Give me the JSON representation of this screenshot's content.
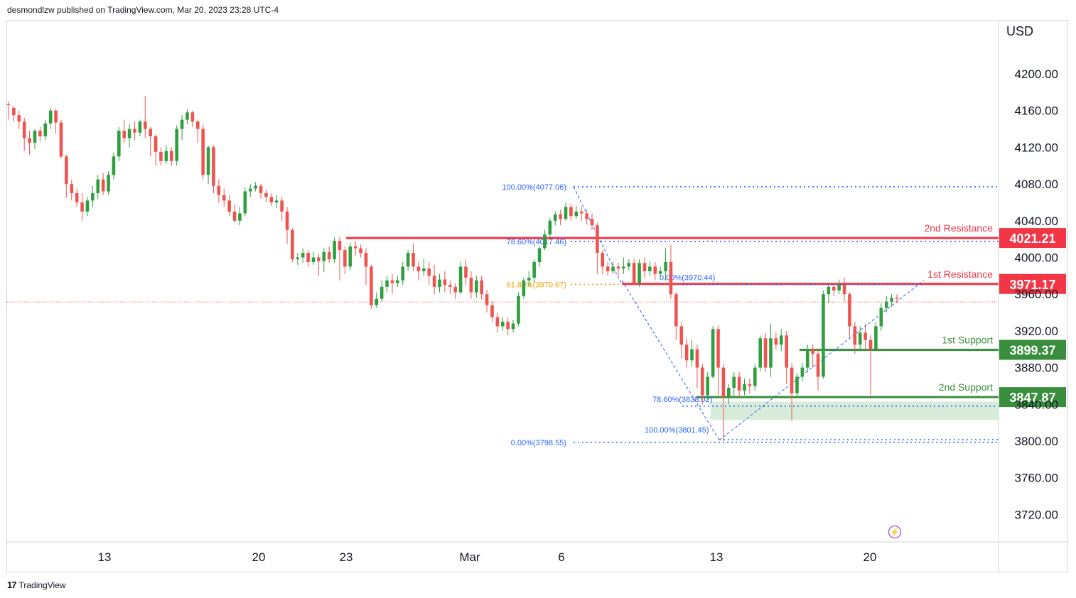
{
  "header": {
    "publisher_line": "desmondlzw published on TradingView.com, Mar 20, 2023 23:28 UTC-4"
  },
  "footer": {
    "brand": "TradingView",
    "logo_icon": "tradingview-logo-icon"
  },
  "colors": {
    "up": "#26a69a",
    "up_candle": "#2e9e3f",
    "down": "#ef5350",
    "resistance": "#f23645",
    "support": "#388e3c",
    "fib": "#2962ff",
    "fib_orange": "#f59d00"
  },
  "chart_data": {
    "type": "candlestick",
    "currency": "USD",
    "x_ticks": [
      "13",
      "20",
      "23",
      "Mar",
      "6",
      "13",
      "20"
    ],
    "y_ticks": [
      "4200.00",
      "4160.00",
      "4120.00",
      "4080.00",
      "4040.00",
      "4000.00",
      "3960.00",
      "3920.00",
      "3880.00",
      "3840.00",
      "3800.00",
      "3760.00",
      "3720.00"
    ],
    "ylim": [
      3690,
      4245
    ],
    "levels": [
      {
        "name": "2nd Resistance",
        "value": 4021.21,
        "label": "4021.21",
        "color": "#f23645"
      },
      {
        "name": "1st Resistance",
        "value": 3971.17,
        "label": "3971.17",
        "color": "#f23645"
      },
      {
        "name": "1st Support",
        "value": 3899.37,
        "label": "3899.37",
        "color": "#388e3c"
      },
      {
        "name": "2nd Support",
        "value": 3847.87,
        "label": "3847.87",
        "color": "#388e3c"
      }
    ],
    "fib_labels": [
      {
        "text": "100.00%(4077.06)",
        "value": 4077.06
      },
      {
        "text": "78.60%(4017.46)",
        "value": 4017.46
      },
      {
        "text": "61.80%(3970.67)",
        "value": 3970.67
      },
      {
        "text": "0.00%(3970.44)",
        "value": 3970.44
      },
      {
        "text": "78.60%(3838.02)",
        "value": 3838.02
      },
      {
        "text": "100.00%(3801.45)",
        "value": 3801.45
      },
      {
        "text": "0.00%(3798.55)",
        "value": 3798.55
      }
    ],
    "last_price": 3951.5,
    "candles": [
      [
        4167,
        4166,
        4170,
        4150
      ],
      [
        4163,
        4155,
        4165,
        4148
      ],
      [
        4155,
        4148,
        4160,
        4140
      ],
      [
        4148,
        4130,
        4152,
        4116
      ],
      [
        4130,
        4125,
        4138,
        4112
      ],
      [
        4125,
        4138,
        4140,
        4118
      ],
      [
        4138,
        4132,
        4142,
        4126
      ],
      [
        4132,
        4146,
        4150,
        4128
      ],
      [
        4146,
        4160,
        4163,
        4140
      ],
      [
        4160,
        4147,
        4162,
        4135
      ],
      [
        4147,
        4110,
        4150,
        4108
      ],
      [
        4110,
        4080,
        4112,
        4065
      ],
      [
        4080,
        4070,
        4085,
        4062
      ],
      [
        4070,
        4060,
        4075,
        4055
      ],
      [
        4060,
        4050,
        4070,
        4040
      ],
      [
        4050,
        4062,
        4066,
        4045
      ],
      [
        4062,
        4070,
        4078,
        4055
      ],
      [
        4070,
        4085,
        4090,
        4064
      ],
      [
        4085,
        4072,
        4092,
        4068
      ],
      [
        4072,
        4090,
        4094,
        4068
      ],
      [
        4090,
        4110,
        4114,
        4085
      ],
      [
        4110,
        4138,
        4142,
        4105
      ],
      [
        4138,
        4130,
        4150,
        4125
      ],
      [
        4130,
        4140,
        4145,
        4120
      ],
      [
        4140,
        4136,
        4148,
        4128
      ],
      [
        4136,
        4148,
        4150,
        4132
      ],
      [
        4148,
        4140,
        4176,
        4130
      ],
      [
        4140,
        4132,
        4142,
        4110
      ],
      [
        4132,
        4115,
        4134,
        4100
      ],
      [
        4115,
        4105,
        4120,
        4100
      ],
      [
        4105,
        4116,
        4122,
        4102
      ],
      [
        4116,
        4105,
        4120,
        4100
      ],
      [
        4105,
        4140,
        4144,
        4100
      ],
      [
        4140,
        4150,
        4155,
        4128
      ],
      [
        4150,
        4158,
        4162,
        4145
      ],
      [
        4158,
        4148,
        4160,
        4142
      ],
      [
        4148,
        4140,
        4150,
        4125
      ],
      [
        4140,
        4090,
        4145,
        4085
      ],
      [
        4090,
        4120,
        4122,
        4080
      ],
      [
        4120,
        4078,
        4122,
        4070
      ],
      [
        4078,
        4068,
        4085,
        4060
      ],
      [
        4068,
        4062,
        4075,
        4055
      ],
      [
        4062,
        4050,
        4068,
        4045
      ],
      [
        4050,
        4040,
        4058,
        4038
      ],
      [
        4040,
        4048,
        4055,
        4035
      ],
      [
        4048,
        4072,
        4076,
        4045
      ],
      [
        4072,
        4075,
        4080,
        4066
      ],
      [
        4075,
        4078,
        4082,
        4072
      ],
      [
        4078,
        4070,
        4080,
        4064
      ],
      [
        4070,
        4066,
        4074,
        4060
      ],
      [
        4066,
        4060,
        4070,
        4056
      ],
      [
        4060,
        4062,
        4068,
        4054
      ],
      [
        4062,
        4050,
        4066,
        4040
      ],
      [
        4050,
        4030,
        4055,
        4015
      ],
      [
        4030,
        3998,
        4032,
        3995
      ],
      [
        3998,
        4000,
        4005,
        3992
      ],
      [
        4000,
        4005,
        4010,
        3994
      ],
      [
        4005,
        3995,
        4008,
        3990
      ],
      [
        3995,
        4000,
        4006,
        3992
      ],
      [
        4000,
        3996,
        4004,
        3980
      ],
      [
        3996,
        4006,
        4010,
        3984
      ],
      [
        4006,
        3998,
        4012,
        3994
      ],
      [
        3998,
        4018,
        4022,
        3994
      ],
      [
        4018,
        4008,
        4022,
        3975
      ],
      [
        4008,
        3990,
        4012,
        3982
      ],
      [
        3990,
        4012,
        4016,
        3986
      ],
      [
        4012,
        4010,
        4018,
        4002
      ],
      [
        4010,
        4005,
        4014,
        4000
      ],
      [
        4005,
        3990,
        4010,
        3970
      ],
      [
        3990,
        3948,
        3992,
        3944
      ],
      [
        3948,
        3955,
        3962,
        3945
      ],
      [
        3955,
        3968,
        3975,
        3952
      ],
      [
        3968,
        3975,
        3980,
        3962
      ],
      [
        3975,
        3972,
        3982,
        3960
      ],
      [
        3972,
        3975,
        3980,
        3968
      ],
      [
        3975,
        3990,
        3995,
        3970
      ],
      [
        3990,
        4005,
        4008,
        3985
      ],
      [
        4005,
        3990,
        4015,
        3985
      ],
      [
        3990,
        3985,
        3995,
        3975
      ],
      [
        3985,
        3988,
        3998,
        3980
      ],
      [
        3988,
        3980,
        3995,
        3970
      ],
      [
        3980,
        3968,
        3992,
        3960
      ],
      [
        3968,
        3976,
        3982,
        3962
      ],
      [
        3976,
        3970,
        3985,
        3962
      ],
      [
        3970,
        3968,
        3975,
        3960
      ],
      [
        3968,
        3962,
        3972,
        3955
      ],
      [
        3962,
        3990,
        3995,
        3960
      ],
      [
        3990,
        3978,
        3998,
        3970
      ],
      [
        3978,
        3962,
        3985,
        3955
      ],
      [
        3962,
        3975,
        3980,
        3956
      ],
      [
        3975,
        3960,
        3980,
        3954
      ],
      [
        3960,
        3948,
        3965,
        3940
      ],
      [
        3948,
        3935,
        3952,
        3930
      ],
      [
        3935,
        3925,
        3940,
        3918
      ],
      [
        3925,
        3930,
        3935,
        3920
      ],
      [
        3930,
        3922,
        3934,
        3915
      ],
      [
        3922,
        3928,
        3932,
        3918
      ],
      [
        3928,
        3958,
        3962,
        3925
      ],
      [
        3958,
        3975,
        3978,
        3955
      ],
      [
        3975,
        3978,
        3985,
        3968
      ],
      [
        3978,
        3995,
        3998,
        3972
      ],
      [
        3995,
        4010,
        4012,
        3990
      ],
      [
        4010,
        4025,
        4030,
        4008
      ],
      [
        4025,
        4040,
        4043,
        4020
      ],
      [
        4040,
        4047,
        4050,
        4035
      ],
      [
        4047,
        4042,
        4052,
        4035
      ],
      [
        4042,
        4055,
        4060,
        4040
      ],
      [
        4055,
        4045,
        4058,
        4040
      ],
      [
        4045,
        4050,
        4056,
        4042
      ],
      [
        4050,
        4048,
        4056,
        4040
      ],
      [
        4048,
        4042,
        4052,
        4036
      ],
      [
        4042,
        4035,
        4048,
        4030
      ],
      [
        4035,
        4005,
        4038,
        3982
      ],
      [
        4005,
        3990,
        4008,
        3982
      ],
      [
        3990,
        3985,
        3995,
        3980
      ],
      [
        3985,
        3990,
        3995,
        3982
      ],
      [
        3990,
        3988,
        3994,
        3980
      ],
      [
        3988,
        3990,
        4000,
        3982
      ],
      [
        3990,
        3994,
        3998,
        3986
      ],
      [
        3994,
        3972,
        3998,
        3970
      ],
      [
        3972,
        3994,
        3998,
        3968
      ],
      [
        3994,
        3985,
        4000,
        3978
      ],
      [
        3985,
        3990,
        3996,
        3980
      ],
      [
        3990,
        3982,
        3995,
        3975
      ],
      [
        3982,
        3985,
        3990,
        3978
      ],
      [
        3985,
        3995,
        4010,
        3975
      ],
      [
        3995,
        3960,
        4014,
        3955
      ],
      [
        3960,
        3925,
        3962,
        3910
      ],
      [
        3925,
        3905,
        3930,
        3890
      ],
      [
        3905,
        3888,
        3912,
        3880
      ],
      [
        3888,
        3900,
        3910,
        3882
      ],
      [
        3900,
        3880,
        3905,
        3858
      ],
      [
        3880,
        3850,
        3884,
        3840
      ],
      [
        3850,
        3870,
        3875,
        3845
      ],
      [
        3870,
        3922,
        3925,
        3868
      ],
      [
        3922,
        3880,
        3926,
        3850
      ],
      [
        3880,
        3848,
        3884,
        3800
      ],
      [
        3848,
        3858,
        3862,
        3840
      ],
      [
        3858,
        3870,
        3875,
        3848
      ],
      [
        3870,
        3855,
        3875,
        3848
      ],
      [
        3855,
        3862,
        3868,
        3850
      ],
      [
        3862,
        3860,
        3868,
        3852
      ],
      [
        3860,
        3880,
        3884,
        3855
      ],
      [
        3880,
        3912,
        3915,
        3876
      ],
      [
        3912,
        3880,
        3918,
        3875
      ],
      [
        3880,
        3912,
        3928,
        3870
      ],
      [
        3912,
        3905,
        3918,
        3900
      ],
      [
        3905,
        3915,
        3922,
        3898
      ],
      [
        3915,
        3880,
        3920,
        3862
      ],
      [
        3880,
        3852,
        3885,
        3822
      ],
      [
        3852,
        3870,
        3874,
        3848
      ],
      [
        3870,
        3880,
        3885,
        3865
      ],
      [
        3880,
        3900,
        3905,
        3875
      ],
      [
        3900,
        3895,
        3905,
        3880
      ],
      [
        3895,
        3870,
        3900,
        3855
      ],
      [
        3870,
        3960,
        3964,
        3868
      ],
      [
        3960,
        3968,
        3970,
        3950
      ],
      [
        3968,
        3964,
        3972,
        3958
      ],
      [
        3964,
        3970,
        3976,
        3960
      ],
      [
        3970,
        3960,
        3978,
        3952
      ],
      [
        3960,
        3925,
        3962,
        3912
      ],
      [
        3925,
        3905,
        3930,
        3895
      ],
      [
        3905,
        3918,
        3925,
        3898
      ],
      [
        3918,
        3910,
        3928,
        3900
      ],
      [
        3910,
        3900,
        3915,
        3850
      ],
      [
        3900,
        3925,
        3930,
        3898
      ],
      [
        3925,
        3945,
        3950,
        3920
      ],
      [
        3945,
        3952,
        3958,
        3940
      ],
      [
        3952,
        3956,
        3960,
        3946
      ],
      [
        3956,
        3955,
        3960,
        3950
      ]
    ]
  }
}
